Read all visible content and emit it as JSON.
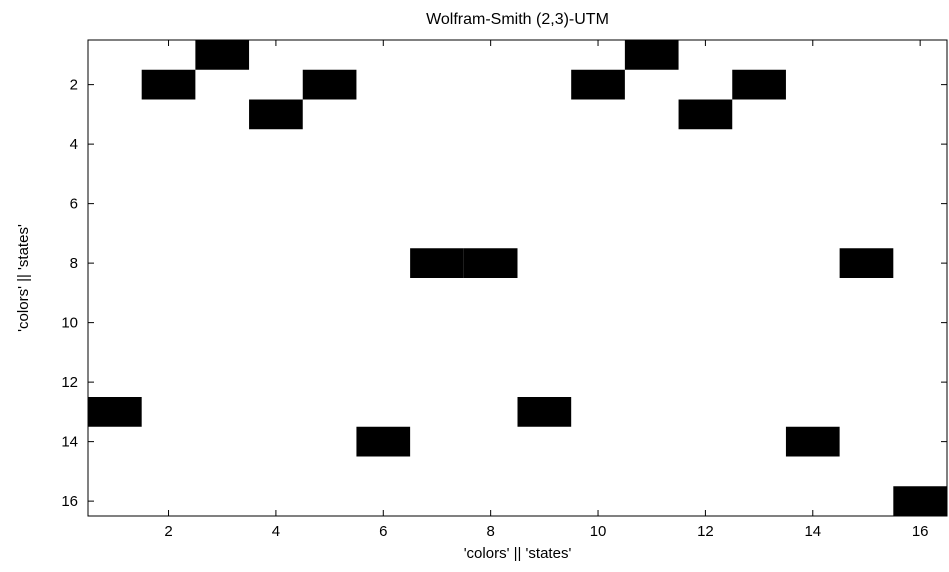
{
  "chart_data": {
    "type": "heatmap",
    "title": "Wolfram-Smith (2,3)-UTM",
    "xlabel": "'colors' || 'states'",
    "ylabel": "'colors' || 'states'",
    "xlim": [
      0.5,
      16.5
    ],
    "ylim": [
      16.5,
      0.5
    ],
    "y_reversed": true,
    "xticks": [
      2,
      4,
      6,
      8,
      10,
      12,
      14,
      16
    ],
    "yticks": [
      2,
      4,
      6,
      8,
      10,
      12,
      14,
      16
    ],
    "grid": false,
    "colormap": {
      "0": "#ffffff",
      "1": "#000000"
    },
    "filled_cells": [
      {
        "x": 3,
        "y": 1
      },
      {
        "x": 11,
        "y": 1
      },
      {
        "x": 2,
        "y": 2
      },
      {
        "x": 5,
        "y": 2
      },
      {
        "x": 10,
        "y": 2
      },
      {
        "x": 13,
        "y": 2
      },
      {
        "x": 4,
        "y": 3
      },
      {
        "x": 12,
        "y": 3
      },
      {
        "x": 7,
        "y": 8
      },
      {
        "x": 8,
        "y": 8
      },
      {
        "x": 15,
        "y": 8
      },
      {
        "x": 1,
        "y": 13
      },
      {
        "x": 9,
        "y": 13
      },
      {
        "x": 6,
        "y": 14
      },
      {
        "x": 14,
        "y": 14
      },
      {
        "x": 16,
        "y": 16
      }
    ]
  }
}
